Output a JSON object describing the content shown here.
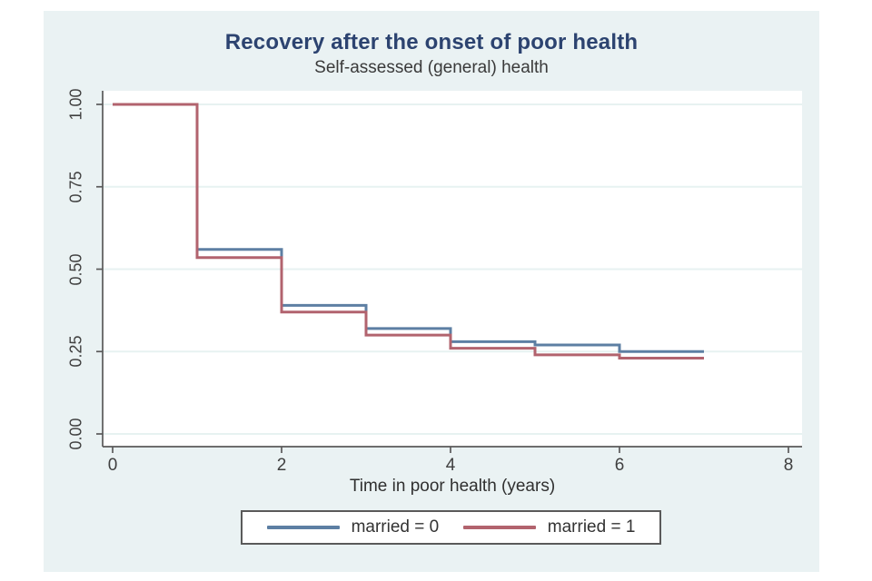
{
  "page": {
    "background": "#ffffff",
    "graph_background": "#eaf2f3",
    "plot_background": "#ffffff"
  },
  "chart_data": {
    "type": "line",
    "style": "step-survival",
    "title": "Recovery after the onset of poor health",
    "subtitle": "Self-assessed (general) health",
    "xlabel": "Time in poor health (years)",
    "ylabel": "",
    "xlim": [
      0,
      8
    ],
    "ylim": [
      0,
      1
    ],
    "x_ticks": [
      0,
      2,
      4,
      6,
      8
    ],
    "y_ticks": [
      "0.00",
      "0.25",
      "0.50",
      "0.75",
      "1.00"
    ],
    "grid": "horizontal",
    "legend_position": "bottom",
    "series": [
      {
        "name": "married = 0",
        "color": "#5d7fa3",
        "step_x": [
          0,
          1,
          2,
          3,
          4,
          5,
          6
        ],
        "step_y": [
          1.0,
          0.56,
          0.39,
          0.32,
          0.28,
          0.27,
          0.25
        ],
        "x_end": 7
      },
      {
        "name": "married = 1",
        "color": "#b2636e",
        "step_x": [
          0,
          1,
          2,
          3,
          4,
          5,
          6
        ],
        "step_y": [
          1.0,
          0.535,
          0.37,
          0.3,
          0.26,
          0.24,
          0.23
        ],
        "x_end": 7
      }
    ],
    "axis_color": "#5a5a5a",
    "grid_color": "#e7f2f1",
    "tick_label_color": "#404040",
    "title_color": "#2c4370",
    "subtitle_color": "#3a3a3a"
  }
}
